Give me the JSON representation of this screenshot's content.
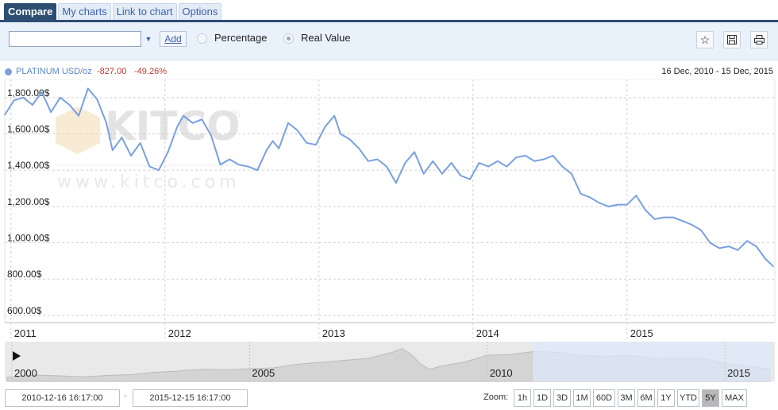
{
  "tabs": [
    {
      "label": "Compare",
      "active": true
    },
    {
      "label": "My charts",
      "active": false
    },
    {
      "label": "Link to chart",
      "active": false
    },
    {
      "label": "Options",
      "active": false
    }
  ],
  "toolbar": {
    "symbol_value": "",
    "add_label": "Add",
    "modes": [
      {
        "label": "Percentage",
        "selected": false
      },
      {
        "label": "Real Value",
        "selected": true
      }
    ],
    "icons": [
      "star-icon",
      "save-icon",
      "print-icon"
    ]
  },
  "legend": {
    "name": "PLATINUM USD/oz",
    "change": "-827.00",
    "change_pct": "-49.26%",
    "series_color": "#79a0e0",
    "change_color": "#c0392b"
  },
  "date_range_label": "16 Dec, 2010 - 15 Dec, 2015",
  "watermark": {
    "brand": "KITCO",
    "url": "www.kitco.com",
    "mark": "®"
  },
  "chart_data": {
    "type": "line",
    "title": "",
    "xlabel": "",
    "ylabel": "",
    "series": [
      {
        "name": "PLATINUM USD/oz",
        "color": "#79a0e0",
        "x": [
          2010.96,
          2011.02,
          2011.08,
          2011.14,
          2011.2,
          2011.26,
          2011.32,
          2011.38,
          2011.44,
          2011.5,
          2011.56,
          2011.62,
          2011.66,
          2011.72,
          2011.78,
          2011.84,
          2011.9,
          2011.96,
          2012.02,
          2012.08,
          2012.12,
          2012.18,
          2012.24,
          2012.3,
          2012.36,
          2012.42,
          2012.48,
          2012.54,
          2012.6,
          2012.66,
          2012.7,
          2012.74,
          2012.8,
          2012.86,
          2012.92,
          2012.98,
          2013.04,
          2013.1,
          2013.14,
          2013.2,
          2013.26,
          2013.32,
          2013.38,
          2013.44,
          2013.5,
          2013.56,
          2013.62,
          2013.68,
          2013.74,
          2013.8,
          2013.86,
          2013.92,
          2013.98,
          2014.04,
          2014.1,
          2014.16,
          2014.22,
          2014.28,
          2014.34,
          2014.4,
          2014.46,
          2014.52,
          2014.58,
          2014.64,
          2014.7,
          2014.76,
          2014.82,
          2014.88,
          2014.94,
          2015.0,
          2015.06,
          2015.12,
          2015.18,
          2015.24,
          2015.3,
          2015.36,
          2015.42,
          2015.48,
          2015.54,
          2015.6,
          2015.66,
          2015.72,
          2015.78,
          2015.84,
          2015.9,
          2015.95
        ],
        "values": [
          1705,
          1785,
          1800,
          1760,
          1830,
          1720,
          1800,
          1760,
          1700,
          1850,
          1790,
          1660,
          1510,
          1580,
          1480,
          1550,
          1420,
          1400,
          1500,
          1640,
          1700,
          1660,
          1680,
          1590,
          1430,
          1460,
          1430,
          1420,
          1400,
          1510,
          1560,
          1520,
          1660,
          1620,
          1550,
          1540,
          1640,
          1700,
          1600,
          1570,
          1520,
          1450,
          1460,
          1420,
          1330,
          1440,
          1500,
          1380,
          1450,
          1380,
          1440,
          1370,
          1350,
          1440,
          1420,
          1450,
          1420,
          1470,
          1480,
          1450,
          1460,
          1480,
          1420,
          1380,
          1270,
          1250,
          1220,
          1200,
          1210,
          1210,
          1260,
          1180,
          1130,
          1140,
          1140,
          1120,
          1100,
          1070,
          1000,
          970,
          980,
          960,
          1010,
          980,
          910,
          870
        ]
      }
    ],
    "yticks": [
      "800.00$",
      "1,000.00$",
      "1,200.00$",
      "1,400.00$",
      "1,600.00$",
      "1,800.00$",
      "600.00$"
    ],
    "ytick_values": [
      800,
      1000,
      1200,
      1400,
      1600,
      1800,
      600
    ],
    "xticks": [
      "2011",
      "2012",
      "2013",
      "2014",
      "2015"
    ],
    "xtick_values": [
      2011,
      2012,
      2013,
      2014,
      2015
    ],
    "ylim": [
      560,
      1900
    ],
    "xlim": [
      2010.96,
      2015.96
    ],
    "grid": true,
    "legend": "top-left"
  },
  "navigator": {
    "ticks": [
      "2000",
      "2005",
      "2010",
      "2015"
    ],
    "tick_values": [
      2000,
      2005,
      2010,
      2015
    ],
    "range": [
      1999.85,
      2016.05
    ],
    "selected": [
      2010.96,
      2015.96
    ],
    "history_x": [
      1999.9,
      2000.5,
      2001,
      2001.5,
      2002,
      2002.5,
      2003,
      2003.5,
      2004,
      2004.5,
      2005,
      2005.5,
      2006,
      2006.5,
      2007,
      2007.5,
      2008,
      2008.2,
      2008.4,
      2008.6,
      2008.8,
      2009,
      2009.5,
      2010,
      2010.5,
      2011,
      2011.5,
      2012,
      2012.5,
      2013,
      2013.5,
      2014,
      2014.5,
      2015,
      2015.5,
      2015.95
    ],
    "history_values": [
      450,
      560,
      520,
      470,
      540,
      580,
      700,
      760,
      850,
      820,
      880,
      920,
      1100,
      1200,
      1300,
      1400,
      1700,
      1900,
      1600,
      1100,
      850,
      1000,
      1200,
      1550,
      1600,
      1750,
      1700,
      1550,
      1500,
      1550,
      1400,
      1420,
      1420,
      1150,
      1000,
      860
    ],
    "play_icon": "play-icon"
  },
  "bottom": {
    "from_date": "2010-12-16 16:17:00",
    "to_date": "2015-12-15 16:17:00",
    "separator": "-",
    "zoom_label": "Zoom:",
    "zoom_buttons": [
      {
        "label": "1h",
        "selected": false
      },
      {
        "label": "1D",
        "selected": false
      },
      {
        "label": "3D",
        "selected": false
      },
      {
        "label": "1M",
        "selected": false
      },
      {
        "label": "60D",
        "selected": false
      },
      {
        "label": "3M",
        "selected": false
      },
      {
        "label": "6M",
        "selected": false
      },
      {
        "label": "1Y",
        "selected": false
      },
      {
        "label": "YTD",
        "selected": false
      },
      {
        "label": "5Y",
        "selected": true
      },
      {
        "label": "MAX",
        "selected": false
      }
    ]
  }
}
